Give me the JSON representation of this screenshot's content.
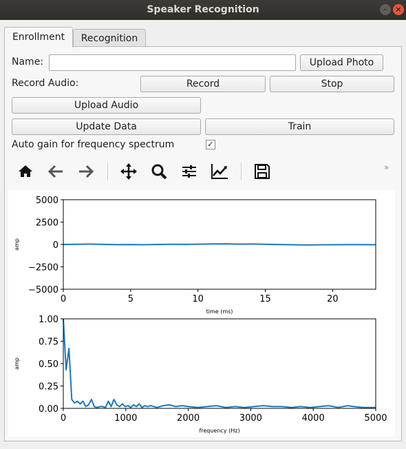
{
  "window": {
    "title": "Speaker Recognition"
  },
  "tabs": [
    {
      "label": "Enrollment",
      "active": true
    },
    {
      "label": "Recognition",
      "active": false
    }
  ],
  "form": {
    "name_label": "Name:",
    "name_value": "",
    "upload_photo": "Upload Photo",
    "record_audio_label": "Record Audio:",
    "record": "Record",
    "stop": "Stop",
    "upload_audio": "Upload Audio",
    "update_data": "Update Data",
    "train": "Train",
    "auto_gain_label": "Auto gain for frequency spectrum",
    "auto_gain_checked": true
  },
  "toolbar": {
    "icons": [
      "home-icon",
      "back-arrow-icon",
      "forward-arrow-icon",
      "pan-icon",
      "zoom-icon",
      "configure-subplots-icon",
      "edit-axes-icon",
      "save-icon"
    ],
    "overflow": "»"
  },
  "chart_data": [
    {
      "type": "line",
      "xlabel": "time (ms)",
      "ylabel": "amp",
      "xlim": [
        0,
        23.2
      ],
      "ylim": [
        -5000,
        5000
      ],
      "xticks": [
        "0",
        "5",
        "10",
        "15",
        "20"
      ],
      "yticks": [
        "5000",
        "2500",
        "0",
        "−2500",
        "−5000"
      ],
      "color": "#1f77b4",
      "series": [
        {
          "x": [
            0,
            1,
            2,
            3,
            4,
            5,
            6,
            7,
            8,
            9,
            10,
            11,
            12,
            13,
            14,
            15,
            16,
            17,
            18,
            19,
            20,
            21,
            22,
            23.2
          ],
          "y": [
            0,
            20,
            40,
            10,
            -20,
            -10,
            -30,
            0,
            20,
            10,
            30,
            60,
            70,
            40,
            50,
            20,
            -10,
            -30,
            -60,
            -40,
            -30,
            -20,
            -20,
            -30
          ]
        }
      ]
    },
    {
      "type": "line",
      "xlabel": "frequency (Hz)",
      "ylabel": "amp",
      "xlim": [
        0,
        5000
      ],
      "ylim": [
        0,
        1.0
      ],
      "xticks": [
        "0",
        "1000",
        "2000",
        "3000",
        "4000",
        "5000"
      ],
      "yticks": [
        "1.00",
        "0.75",
        "0.50",
        "0.25",
        "0.00"
      ],
      "color": "#1f77b4",
      "series": [
        {
          "x": [
            0,
            45,
            90,
            135,
            180,
            225,
            270,
            315,
            360,
            405,
            450,
            495,
            540,
            585,
            630,
            675,
            720,
            765,
            810,
            855,
            900,
            945,
            990,
            1035,
            1080,
            1125,
            1170,
            1215,
            1260,
            1305,
            1350,
            1400,
            1500,
            1600,
            1700,
            1800,
            1900,
            2000,
            2150,
            2300,
            2450,
            2600,
            2750,
            2900,
            3050,
            3200,
            3350,
            3500,
            3650,
            3800,
            3950,
            4100,
            4250,
            4400,
            4550,
            4650,
            4800,
            5000
          ],
          "y": [
            1.0,
            0.43,
            0.67,
            0.1,
            0.06,
            0.08,
            0.05,
            0.08,
            0.02,
            0.04,
            0.1,
            0.02,
            0.01,
            0.02,
            0.02,
            0.01,
            0.08,
            0.02,
            0.1,
            0.04,
            0.02,
            0.05,
            0.02,
            0.03,
            0.01,
            0.04,
            0.02,
            0.05,
            0.01,
            0.03,
            0.02,
            0.03,
            0.01,
            0.03,
            0.04,
            0.02,
            0.03,
            0.02,
            0.01,
            0.02,
            0.03,
            0.01,
            0.02,
            0.01,
            0.02,
            0.03,
            0.02,
            0.02,
            0.01,
            0.02,
            0.01,
            0.02,
            0.03,
            0.01,
            0.03,
            0.02,
            0.01,
            0.01
          ]
        }
      ]
    }
  ]
}
